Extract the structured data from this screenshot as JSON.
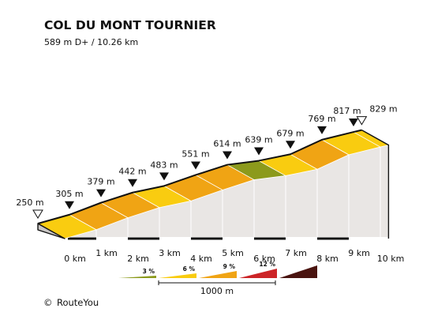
{
  "chart_data": {
    "type": "area",
    "title": "COL DU MONT TOURNIER",
    "subtitle": "589 m D+ / 10.26 km",
    "x_unit": "km",
    "x_ticks": [
      "0 km",
      "1 km",
      "2 km",
      "3 km",
      "4 km",
      "5 km",
      "6 km",
      "7 km",
      "8 km",
      "9 km",
      "10 km"
    ],
    "points": [
      {
        "km": 0,
        "elev": 250,
        "label": "250 m",
        "marker": "start"
      },
      {
        "km": 1,
        "elev": 305,
        "label": "305 m",
        "marker": "point"
      },
      {
        "km": 2,
        "elev": 379,
        "label": "379 m",
        "marker": "point"
      },
      {
        "km": 3,
        "elev": 442,
        "label": "442 m",
        "marker": "point"
      },
      {
        "km": 4,
        "elev": 483,
        "label": "483 m",
        "marker": "point"
      },
      {
        "km": 5,
        "elev": 551,
        "label": "551 m",
        "marker": "point"
      },
      {
        "km": 6,
        "elev": 614,
        "label": "614 m",
        "marker": "point"
      },
      {
        "km": 7,
        "elev": 639,
        "label": "639 m",
        "marker": "point"
      },
      {
        "km": 8,
        "elev": 679,
        "label": "679 m",
        "marker": "point"
      },
      {
        "km": 9,
        "elev": 769,
        "label": "769 m",
        "marker": "point"
      },
      {
        "km": 10,
        "elev": 817,
        "label": "817 m",
        "marker": "point"
      },
      {
        "km": 10.26,
        "elev": 829,
        "label": "829 m",
        "marker": "end"
      }
    ],
    "segments": [
      {
        "from_km": 0,
        "to_km": 1,
        "category": "6"
      },
      {
        "from_km": 1,
        "to_km": 2,
        "category": "9"
      },
      {
        "from_km": 2,
        "to_km": 3,
        "category": "9"
      },
      {
        "from_km": 3,
        "to_km": 4,
        "category": "6"
      },
      {
        "from_km": 4,
        "to_km": 5,
        "category": "9"
      },
      {
        "from_km": 5,
        "to_km": 6,
        "category": "9"
      },
      {
        "from_km": 6,
        "to_km": 7,
        "category": "3"
      },
      {
        "from_km": 7,
        "to_km": 8,
        "category": "6"
      },
      {
        "from_km": 8,
        "to_km": 9,
        "category": "9"
      },
      {
        "from_km": 9,
        "to_km": 10,
        "category": "6"
      },
      {
        "from_km": 10,
        "to_km": 10.26,
        "category": "6"
      }
    ],
    "legend": [
      {
        "label": "3 %",
        "color": "#8c9a1c"
      },
      {
        "label": "6 %",
        "color": "#f9cc10"
      },
      {
        "label": "9 %",
        "color": "#f0a414"
      },
      {
        "label": "12 %",
        "color": "#cc2427"
      },
      {
        "label": "",
        "color": "#4a1410"
      }
    ],
    "scale_label": "1000 m",
    "colors": {
      "3": "#8c9a1c",
      "6": "#f9cc10",
      "9": "#f0a414",
      "wall": "#e9e6e4",
      "base": "#c9c6c4",
      "outline": "#111111"
    }
  },
  "footer": {
    "copyright_symbol": "©",
    "brand": "RouteYou"
  }
}
